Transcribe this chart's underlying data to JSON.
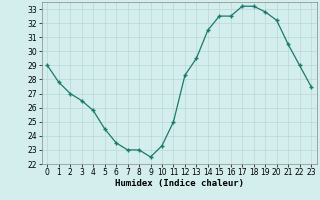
{
  "x": [
    0,
    1,
    2,
    3,
    4,
    5,
    6,
    7,
    8,
    9,
    10,
    11,
    12,
    13,
    14,
    15,
    16,
    17,
    18,
    19,
    20,
    21,
    22,
    23
  ],
  "y": [
    29.0,
    27.8,
    27.0,
    26.5,
    25.8,
    24.5,
    23.5,
    23.0,
    23.0,
    22.5,
    23.3,
    25.0,
    28.3,
    29.5,
    31.5,
    32.5,
    32.5,
    33.2,
    33.2,
    32.8,
    32.2,
    30.5,
    29.0,
    27.5
  ],
  "line_color": "#1a7a6a",
  "marker": "+",
  "marker_color": "#1a7a6a",
  "bg_color": "#d4eeee",
  "grid_color": "#b8d8d8",
  "xlabel": "Humidex (Indice chaleur)",
  "xlim": [
    -0.5,
    23.5
  ],
  "ylim": [
    22,
    33.5
  ],
  "yticks": [
    22,
    23,
    24,
    25,
    26,
    27,
    28,
    29,
    30,
    31,
    32,
    33
  ],
  "xticks": [
    0,
    1,
    2,
    3,
    4,
    5,
    6,
    7,
    8,
    9,
    10,
    11,
    12,
    13,
    14,
    15,
    16,
    17,
    18,
    19,
    20,
    21,
    22,
    23
  ],
  "tick_labelsize": 5.5,
  "xlabel_fontsize": 6.5,
  "line_width": 0.9,
  "marker_size": 3.5
}
